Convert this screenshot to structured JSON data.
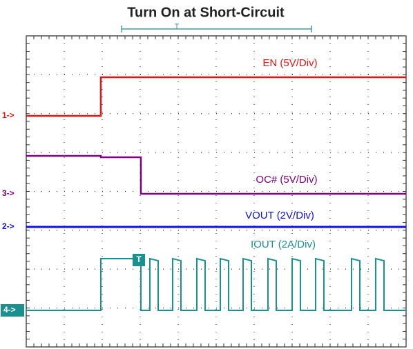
{
  "title": "Turn On at Short-Circuit",
  "trigger_marker": "T",
  "channels": [
    {
      "marker": "1->",
      "label": "EN (5V/Div)"
    },
    {
      "marker": "3->",
      "label": "OC# (5V/Div)"
    },
    {
      "marker": "2->",
      "label": "VOUT (2V/Div)"
    },
    {
      "marker": "4->",
      "label": "IOUT (2A/Div)",
      "flag": "T"
    }
  ]
}
